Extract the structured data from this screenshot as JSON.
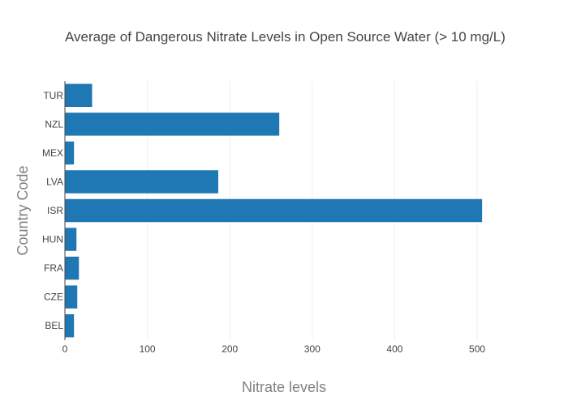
{
  "chart_data": {
    "type": "bar",
    "orientation": "horizontal",
    "title": "Average of Dangerous Nitrate Levels in Open Source Water (> 10 mg/L)",
    "xlabel": "Nitrate levels",
    "ylabel": "Country Code",
    "categories": [
      "BEL",
      "CZE",
      "FRA",
      "HUN",
      "ISR",
      "LVA",
      "MEX",
      "NZL",
      "TUR"
    ],
    "values": [
      11,
      15,
      17,
      14,
      506,
      186,
      11,
      260,
      33
    ],
    "xlim": [
      0,
      560
    ],
    "xticks": [
      0,
      100,
      200,
      300,
      400,
      500
    ],
    "grid": true,
    "legend": false,
    "bar_color": "#1f77b4"
  }
}
